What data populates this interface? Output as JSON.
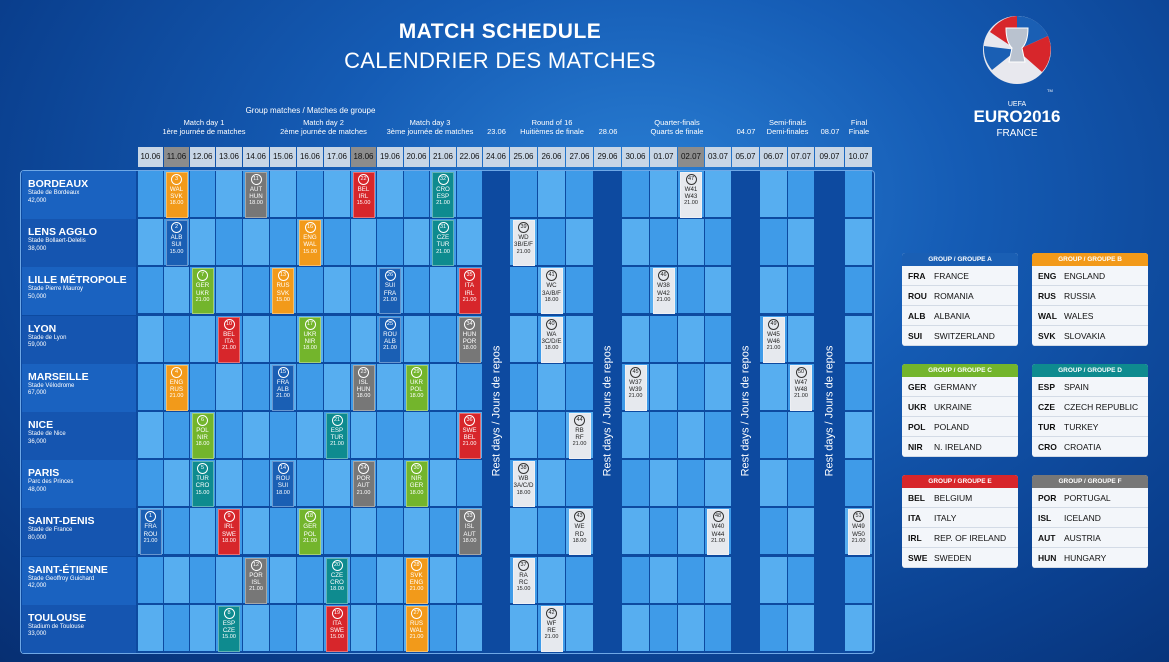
{
  "title": {
    "line1": "MATCH SCHEDULE",
    "line2": "CALENDRIER DES MATCHES"
  },
  "logo": {
    "uefa": "UEFA",
    "name": "EURO2016",
    "country": "FRANCE",
    "tm": "TM"
  },
  "stage_headers": {
    "group": "Group matches / Matches de groupe",
    "md1": "Match day 1",
    "md1_fr": "1ère journée de matches",
    "md2": "Match day 2",
    "md2_fr": "2ème journée de matches",
    "md3": "Match day 3",
    "md3_fr": "3ème journée de matches",
    "r16": "Round of 16",
    "r16_fr": "Huitièmes de finale",
    "qf": "Quarter-finals",
    "qf_fr": "Quarts de finale",
    "sf": "Semi-finals",
    "sf_fr": "Demi-finales",
    "final": "Final",
    "final_fr": "Finale",
    "rest1": "23.06",
    "rest2": "28.06",
    "rest3": "04.07",
    "rest4": "08.07"
  },
  "dates": [
    "10.06",
    "11.06",
    "12.06",
    "13.06",
    "14.06",
    "15.06",
    "16.06",
    "17.06",
    "18.06",
    "19.06",
    "20.06",
    "21.06",
    "22.06",
    "24.06",
    "25.06",
    "26.06",
    "27.06",
    "29.06",
    "30.06",
    "01.07",
    "02.07",
    "03.07",
    "05.07",
    "06.07",
    "07.07",
    "09.07",
    "10.07"
  ],
  "rest_label": "Rest days / Jours de repos",
  "venues": [
    {
      "name": "BORDEAUX",
      "stadium": "Stade de Bordeaux",
      "capacity": "42,000"
    },
    {
      "name": "LENS AGGLO",
      "stadium": "Stade Bollaert-Delelis",
      "capacity": "38,000"
    },
    {
      "name": "LILLE MÉTROPOLE",
      "stadium": "Stade Pierre Mauroy",
      "capacity": "50,000"
    },
    {
      "name": "LYON",
      "stadium": "Stade de Lyon",
      "capacity": "59,000"
    },
    {
      "name": "MARSEILLE",
      "stadium": "Stade Vélodrome",
      "capacity": "67,000"
    },
    {
      "name": "NICE",
      "stadium": "Stade de Nice",
      "capacity": "36,000"
    },
    {
      "name": "PARIS",
      "stadium": "Parc des Princes",
      "capacity": "48,000"
    },
    {
      "name": "SAINT-DENIS",
      "stadium": "Stade de France",
      "capacity": "80,000"
    },
    {
      "name": "SAINT-ÉTIENNE",
      "stadium": "Stade Geoffroy Guichard",
      "capacity": "42,000"
    },
    {
      "name": "TOULOUSE",
      "stadium": "Stadium de Toulouse",
      "capacity": "33,000"
    }
  ],
  "matches": [
    {
      "n": "1",
      "a": "FRA",
      "b": "ROU",
      "time": "21.00",
      "row": 7,
      "col": 0,
      "color": "#1a5fb4"
    },
    {
      "n": "2",
      "a": "ALB",
      "b": "SUI",
      "time": "15.00",
      "row": 1,
      "col": 1,
      "color": "#1a5fb4"
    },
    {
      "n": "3",
      "a": "WAL",
      "b": "SVK",
      "time": "18.00",
      "row": 0,
      "col": 1,
      "color": "#f29a1a"
    },
    {
      "n": "4",
      "a": "ENG",
      "b": "RUS",
      "time": "21.00",
      "row": 4,
      "col": 1,
      "color": "#f29a1a"
    },
    {
      "n": "5",
      "a": "TUR",
      "b": "CRO",
      "time": "15.00",
      "row": 6,
      "col": 2,
      "color": "#0e8b8f"
    },
    {
      "n": "6",
      "a": "POL",
      "b": "NIR",
      "time": "18.00",
      "row": 5,
      "col": 2,
      "color": "#73b52c"
    },
    {
      "n": "7",
      "a": "GER",
      "b": "UKR",
      "time": "21.00",
      "row": 2,
      "col": 2,
      "color": "#73b52c"
    },
    {
      "n": "8",
      "a": "ESP",
      "b": "CZE",
      "time": "15.00",
      "row": 9,
      "col": 3,
      "color": "#0e8b8f"
    },
    {
      "n": "9",
      "a": "IRL",
      "b": "SWE",
      "time": "18.00",
      "row": 7,
      "col": 3,
      "color": "#d7262b"
    },
    {
      "n": "10",
      "a": "BEL",
      "b": "ITA",
      "time": "21.00",
      "row": 3,
      "col": 3,
      "color": "#d7262b"
    },
    {
      "n": "11",
      "a": "AUT",
      "b": "HUN",
      "time": "18.00",
      "row": 0,
      "col": 4,
      "color": "#777777"
    },
    {
      "n": "12",
      "a": "POR",
      "b": "ISL",
      "time": "21.00",
      "row": 8,
      "col": 4,
      "color": "#777777"
    },
    {
      "n": "13",
      "a": "RUS",
      "b": "SVK",
      "time": "15.00",
      "row": 2,
      "col": 5,
      "color": "#f29a1a"
    },
    {
      "n": "14",
      "a": "ROU",
      "b": "SUI",
      "time": "18.00",
      "row": 6,
      "col": 5,
      "color": "#1a5fb4"
    },
    {
      "n": "15",
      "a": "FRA",
      "b": "ALB",
      "time": "21.00",
      "row": 4,
      "col": 5,
      "color": "#1a5fb4"
    },
    {
      "n": "16",
      "a": "ENG",
      "b": "WAL",
      "time": "15.00",
      "row": 1,
      "col": 6,
      "color": "#f29a1a"
    },
    {
      "n": "17",
      "a": "UKR",
      "b": "NIR",
      "time": "18.00",
      "row": 3,
      "col": 6,
      "color": "#73b52c"
    },
    {
      "n": "18",
      "a": "GER",
      "b": "POL",
      "time": "21.00",
      "row": 7,
      "col": 6,
      "color": "#73b52c"
    },
    {
      "n": "19",
      "a": "ITA",
      "b": "SWE",
      "time": "15.00",
      "row": 9,
      "col": 7,
      "color": "#d7262b"
    },
    {
      "n": "20",
      "a": "CZE",
      "b": "CRO",
      "time": "18.00",
      "row": 8,
      "col": 7,
      "color": "#0e8b8f"
    },
    {
      "n": "21",
      "a": "ESP",
      "b": "TUR",
      "time": "21.00",
      "row": 5,
      "col": 7,
      "color": "#0e8b8f"
    },
    {
      "n": "22",
      "a": "BEL",
      "b": "IRL",
      "time": "15.00",
      "row": 0,
      "col": 8,
      "color": "#d7262b"
    },
    {
      "n": "23",
      "a": "ISL",
      "b": "HUN",
      "time": "18.00",
      "row": 4,
      "col": 8,
      "color": "#777777"
    },
    {
      "n": "24",
      "a": "POR",
      "b": "AUT",
      "time": "21.00",
      "row": 6,
      "col": 8,
      "color": "#777777"
    },
    {
      "n": "25",
      "a": "ROU",
      "b": "ALB",
      "time": "21.00",
      "row": 3,
      "col": 9,
      "color": "#1a5fb4"
    },
    {
      "n": "26",
      "a": "SUI",
      "b": "FRA",
      "time": "21.00",
      "row": 2,
      "col": 9,
      "color": "#1a5fb4"
    },
    {
      "n": "27",
      "a": "RUS",
      "b": "WAL",
      "time": "21.00",
      "row": 9,
      "col": 10,
      "color": "#f29a1a"
    },
    {
      "n": "28",
      "a": "SVK",
      "b": "ENG",
      "time": "21.00",
      "row": 8,
      "col": 10,
      "color": "#f29a1a"
    },
    {
      "n": "29",
      "a": "UKR",
      "b": "POL",
      "time": "18.00",
      "row": 4,
      "col": 10,
      "color": "#73b52c"
    },
    {
      "n": "30",
      "a": "NIR",
      "b": "GER",
      "time": "18.00",
      "row": 6,
      "col": 10,
      "color": "#73b52c"
    },
    {
      "n": "31",
      "a": "CZE",
      "b": "TUR",
      "time": "21.00",
      "row": 1,
      "col": 11,
      "color": "#0e8b8f"
    },
    {
      "n": "32",
      "a": "CRO",
      "b": "ESP",
      "time": "21.00",
      "row": 0,
      "col": 11,
      "color": "#0e8b8f"
    },
    {
      "n": "33",
      "a": "ISL",
      "b": "AUT",
      "time": "18.00",
      "row": 7,
      "col": 12,
      "color": "#777777"
    },
    {
      "n": "34",
      "a": "HUN",
      "b": "POR",
      "time": "18.00",
      "row": 3,
      "col": 12,
      "color": "#777777"
    },
    {
      "n": "35",
      "a": "ITA",
      "b": "IRL",
      "time": "21.00",
      "row": 2,
      "col": 12,
      "color": "#d7262b"
    },
    {
      "n": "36",
      "a": "SWE",
      "b": "BEL",
      "time": "21.00",
      "row": 5,
      "col": 12,
      "color": "#d7262b"
    },
    {
      "n": "37",
      "a": "RA",
      "b": "RC",
      "time": "15.00",
      "row": 8,
      "col": 14,
      "color": "#e6e9ee"
    },
    {
      "n": "38",
      "a": "WB",
      "b": "3A/C/D",
      "time": "18.00",
      "row": 6,
      "col": 14,
      "color": "#e6e9ee"
    },
    {
      "n": "39",
      "a": "WD",
      "b": "3B/E/F",
      "time": "21.00",
      "row": 1,
      "col": 14,
      "color": "#e6e9ee"
    },
    {
      "n": "40",
      "a": "WA",
      "b": "3C/D/E",
      "time": "18.00",
      "row": 3,
      "col": 15,
      "color": "#e6e9ee"
    },
    {
      "n": "41",
      "a": "WC",
      "b": "3A/B/F",
      "time": "18.00",
      "row": 2,
      "col": 15,
      "color": "#e6e9ee"
    },
    {
      "n": "42",
      "a": "WF",
      "b": "RE",
      "time": "21.00",
      "row": 9,
      "col": 15,
      "color": "#e6e9ee"
    },
    {
      "n": "43",
      "a": "WE",
      "b": "RD",
      "time": "18.00",
      "row": 7,
      "col": 16,
      "color": "#e6e9ee"
    },
    {
      "n": "44",
      "a": "RB",
      "b": "RF",
      "time": "21.00",
      "row": 5,
      "col": 16,
      "color": "#e6e9ee"
    },
    {
      "n": "45",
      "a": "W37",
      "b": "W39",
      "time": "21.00",
      "row": 4,
      "col": 18,
      "color": "#e6e9ee"
    },
    {
      "n": "46",
      "a": "W38",
      "b": "W42",
      "time": "21.00",
      "row": 2,
      "col": 19,
      "color": "#e6e9ee"
    },
    {
      "n": "47",
      "a": "W41",
      "b": "W43",
      "time": "21.00",
      "row": 0,
      "col": 20,
      "color": "#e6e9ee"
    },
    {
      "n": "48",
      "a": "W40",
      "b": "W44",
      "time": "21.00",
      "row": 7,
      "col": 21,
      "color": "#e6e9ee"
    },
    {
      "n": "49",
      "a": "W45",
      "b": "W46",
      "time": "21.00",
      "row": 3,
      "col": 23,
      "color": "#e6e9ee"
    },
    {
      "n": "50",
      "a": "W47",
      "b": "W48",
      "time": "21.00",
      "row": 4,
      "col": 24,
      "color": "#e6e9ee"
    },
    {
      "n": "51",
      "a": "W49",
      "b": "W50",
      "time": "21.00",
      "row": 7,
      "col": 26,
      "color": "#e6e9ee"
    }
  ],
  "groups": [
    {
      "title": "GROUP / GROUPE A",
      "color": "#1a5fb4",
      "teams": [
        {
          "code": "FRA",
          "name": "FRANCE"
        },
        {
          "code": "ROU",
          "name": "ROMANIA"
        },
        {
          "code": "ALB",
          "name": "ALBANIA"
        },
        {
          "code": "SUI",
          "name": "SWITZERLAND"
        }
      ]
    },
    {
      "title": "GROUP / GROUPE B",
      "color": "#f29a1a",
      "teams": [
        {
          "code": "ENG",
          "name": "ENGLAND"
        },
        {
          "code": "RUS",
          "name": "RUSSIA"
        },
        {
          "code": "WAL",
          "name": "WALES"
        },
        {
          "code": "SVK",
          "name": "SLOVAKIA"
        }
      ]
    },
    {
      "title": "GROUP / GROUPE C",
      "color": "#73b52c",
      "teams": [
        {
          "code": "GER",
          "name": "GERMANY"
        },
        {
          "code": "UKR",
          "name": "UKRAINE"
        },
        {
          "code": "POL",
          "name": "POLAND"
        },
        {
          "code": "NIR",
          "name": "N. IRELAND"
        }
      ]
    },
    {
      "title": "GROUP / GROUPE D",
      "color": "#0e8b8f",
      "teams": [
        {
          "code": "ESP",
          "name": "SPAIN"
        },
        {
          "code": "CZE",
          "name": "CZECH REPUBLIC"
        },
        {
          "code": "TUR",
          "name": "TURKEY"
        },
        {
          "code": "CRO",
          "name": "CROATIA"
        }
      ]
    },
    {
      "title": "GROUP / GROUPE E",
      "color": "#d7262b",
      "teams": [
        {
          "code": "BEL",
          "name": "BELGIUM"
        },
        {
          "code": "ITA",
          "name": "ITALY"
        },
        {
          "code": "IRL",
          "name": "REP. OF IRELAND"
        },
        {
          "code": "SWE",
          "name": "SWEDEN"
        }
      ]
    },
    {
      "title": "GROUP / GROUPE F",
      "color": "#777777",
      "teams": [
        {
          "code": "POR",
          "name": "PORTUGAL"
        },
        {
          "code": "ISL",
          "name": "ICELAND"
        },
        {
          "code": "AUT",
          "name": "AUSTRIA"
        },
        {
          "code": "HUN",
          "name": "HUNGARY"
        }
      ]
    }
  ]
}
